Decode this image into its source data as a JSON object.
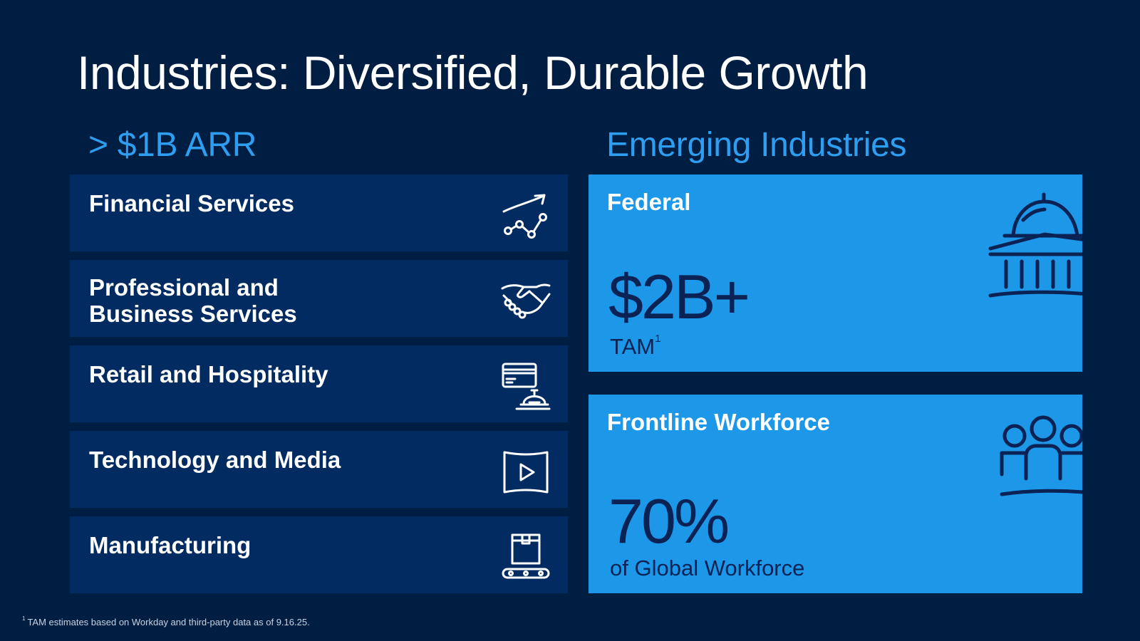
{
  "title": "Industries: Diversified, Durable Growth",
  "left_heading": "> $1B ARR",
  "right_heading": "Emerging Industries",
  "industries": [
    {
      "label": "Financial Services",
      "icon": "trend-chart-icon"
    },
    {
      "label": "Professional and Business Services",
      "icon": "handshake-icon"
    },
    {
      "label": "Retail and Hospitality",
      "icon": "card-and-bell-icon"
    },
    {
      "label": "Technology and Media",
      "icon": "play-screen-icon"
    },
    {
      "label": "Manufacturing",
      "icon": "box-conveyor-icon"
    }
  ],
  "emerging": [
    {
      "label": "Federal",
      "value": "$2B+",
      "sub": "TAM",
      "sub_mark": "1",
      "icon": "capitol-building-icon"
    },
    {
      "label": "Frontline Workforce",
      "value": "70%",
      "sub": "of Global Workforce",
      "sub_mark": "",
      "icon": "people-group-icon"
    }
  ],
  "footnote": {
    "mark": "1",
    "text": "TAM estimates based on Workday and third-party data as of 9.16.25."
  },
  "colors": {
    "background": "#001d42",
    "industry_card": "#012b61",
    "emerging_card": "#1d97e8",
    "accent": "#2e9ef0",
    "dark_text": "#0a2254"
  }
}
